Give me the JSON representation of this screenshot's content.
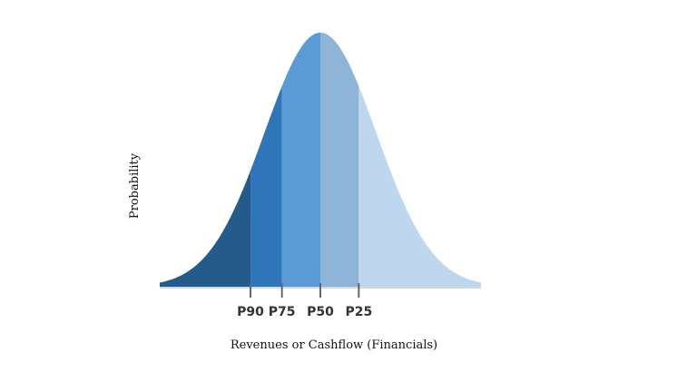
{
  "chart_data": {
    "type": "area",
    "distribution": "normal",
    "mean": 50,
    "sd": 16,
    "xlim": [
      4,
      96
    ],
    "xlabel": "Revenues or Cashflow (Financials)",
    "ylabel": "Probability",
    "markers": [
      {
        "label": "P90",
        "x": 30
      },
      {
        "label": "P75",
        "x": 39
      },
      {
        "label": "P50",
        "x": 50
      },
      {
        "label": "P25",
        "x": 61
      }
    ],
    "bands": [
      {
        "from": 4,
        "to": 30,
        "color": "#245a8c"
      },
      {
        "from": 30,
        "to": 39,
        "color": "#2f75b8"
      },
      {
        "from": 39,
        "to": 50,
        "color": "#5b9bd5"
      },
      {
        "from": 50,
        "to": 61,
        "color": "#8eb4d8"
      },
      {
        "from": 61,
        "to": 96,
        "color": "#bed7ee"
      }
    ],
    "grid": false,
    "legend": "none"
  }
}
